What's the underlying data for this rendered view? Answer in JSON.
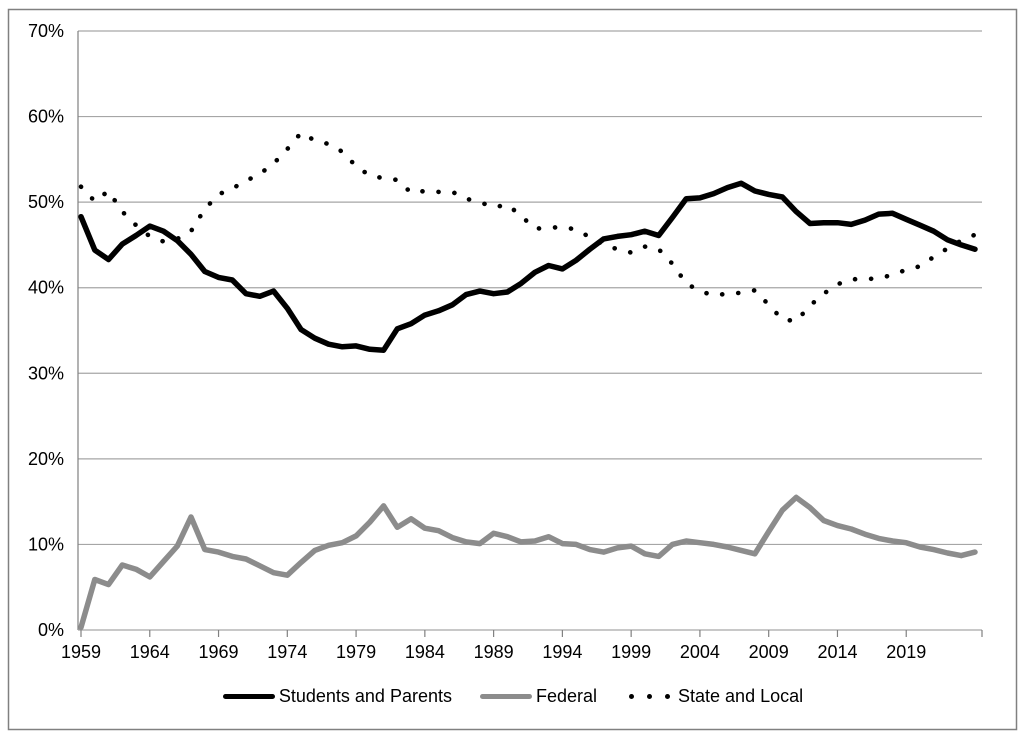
{
  "figure": {
    "background_color": "#ffffff",
    "frame_color": "#808080",
    "gridline_color": "#a6a6a6",
    "axis_color": "#808080",
    "text_color": "#000000"
  },
  "chart_data": {
    "type": "line",
    "title": "",
    "xlabel": "",
    "ylabel": "",
    "grid": "horizontal",
    "legend_position": "bottom",
    "ylim": [
      0,
      70
    ],
    "y_ticks": [
      "0%",
      "10%",
      "20%",
      "30%",
      "40%",
      "50%",
      "60%",
      "70%"
    ],
    "x_tick_years": [
      1959,
      1964,
      1969,
      1974,
      1979,
      1984,
      1989,
      1994,
      1999,
      2004,
      2009,
      2014,
      2019
    ],
    "x": [
      1959,
      1960,
      1961,
      1962,
      1963,
      1964,
      1965,
      1966,
      1967,
      1968,
      1969,
      1970,
      1971,
      1972,
      1973,
      1974,
      1975,
      1976,
      1977,
      1978,
      1979,
      1980,
      1981,
      1982,
      1983,
      1984,
      1985,
      1986,
      1987,
      1988,
      1989,
      1990,
      1991,
      1992,
      1993,
      1994,
      1995,
      1996,
      1997,
      1998,
      1999,
      2000,
      2001,
      2002,
      2003,
      2004,
      2005,
      2006,
      2007,
      2008,
      2009,
      2010,
      2011,
      2012,
      2013,
      2014,
      2015,
      2016,
      2017,
      2018,
      2019,
      2020,
      2021,
      2022,
      2023,
      2024
    ],
    "series": [
      {
        "name": "Students and Parents",
        "color": "#000000",
        "style": "solid",
        "values": [
          48.3,
          44.4,
          43.3,
          45.1,
          46.1,
          47.2,
          46.6,
          45.5,
          43.9,
          41.9,
          41.2,
          40.9,
          39.3,
          39.0,
          39.6,
          37.6,
          35.1,
          34.1,
          33.4,
          33.1,
          33.2,
          32.8,
          32.7,
          35.2,
          35.8,
          36.8,
          37.3,
          38.0,
          39.2,
          39.6,
          39.3,
          39.5,
          40.5,
          41.8,
          42.6,
          42.2,
          43.2,
          44.5,
          45.7,
          46.0,
          46.2,
          46.6,
          46.1,
          48.2,
          50.4,
          50.5,
          51.0,
          51.7,
          52.2,
          51.3,
          50.9,
          50.6,
          48.9,
          47.5,
          47.6,
          47.6,
          47.4,
          47.9,
          48.6,
          48.7,
          48.0,
          47.3,
          46.6,
          45.6,
          45.0,
          44.5
        ]
      },
      {
        "name": "Federal",
        "color": "#8c8c8c",
        "style": "solid",
        "values": [
          0.3,
          5.9,
          5.3,
          7.6,
          7.1,
          6.2,
          8.0,
          9.8,
          13.2,
          9.4,
          9.1,
          8.6,
          8.3,
          7.5,
          6.7,
          6.4,
          7.9,
          9.3,
          9.9,
          10.2,
          11.0,
          12.6,
          14.5,
          12.0,
          13.0,
          11.9,
          11.6,
          10.8,
          10.3,
          10.1,
          11.3,
          10.9,
          10.3,
          10.4,
          10.9,
          10.1,
          10.0,
          9.4,
          9.1,
          9.6,
          9.8,
          8.9,
          8.6,
          10.0,
          10.4,
          10.2,
          10.0,
          9.7,
          9.3,
          8.9,
          11.5,
          14.0,
          15.5,
          14.3,
          12.8,
          12.2,
          11.8,
          11.2,
          10.7,
          10.4,
          10.2,
          9.7,
          9.4,
          9.0,
          8.7,
          9.1
        ]
      },
      {
        "name": "State and Local",
        "color": "#000000",
        "style": "dotted",
        "values": [
          51.8,
          50.1,
          51.3,
          48.9,
          47.3,
          46.0,
          45.4,
          45.7,
          46.6,
          49.2,
          50.9,
          51.6,
          52.5,
          53.3,
          54.5,
          56.2,
          58.1,
          57.2,
          56.8,
          55.9,
          54.2,
          53.1,
          52.8,
          52.6,
          51.1,
          51.3,
          51.2,
          51.2,
          50.4,
          50.0,
          49.4,
          49.7,
          48.4,
          46.9,
          47.0,
          47.1,
          46.8,
          45.9,
          45.0,
          44.5,
          44.1,
          44.8,
          44.5,
          42.8,
          40.5,
          39.6,
          39.1,
          39.3,
          39.4,
          39.7,
          38.0,
          36.3,
          36.1,
          37.9,
          39.3,
          40.4,
          41.0,
          41.0,
          41.1,
          41.5,
          42.1,
          42.5,
          43.6,
          44.6,
          45.5,
          46.2
        ]
      }
    ]
  }
}
